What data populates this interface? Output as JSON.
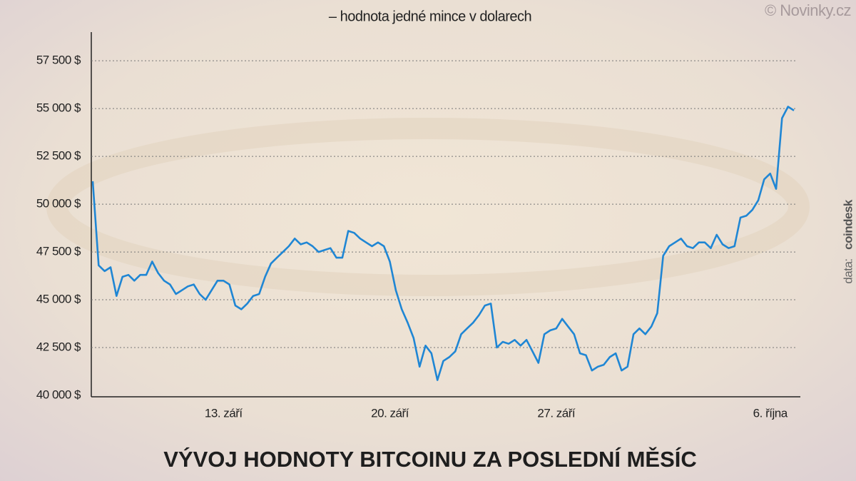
{
  "chart_data": {
    "type": "line",
    "title": "VÝVOJ HODNOTY BITCOINU ZA POSLEDNÍ MĚSÍC",
    "subtitle": "– hodnota jedné mince v dolarech",
    "watermark": "© Novinky.cz",
    "source_label": "data:",
    "source": "coindesk",
    "categories": [
      null,
      null,
      null,
      null,
      null,
      null,
      null,
      null,
      null,
      null,
      null,
      null,
      null,
      null,
      null,
      null,
      null,
      null,
      null,
      null,
      null,
      null,
      "13. září",
      null,
      null,
      null,
      null,
      null,
      null,
      null,
      null,
      null,
      null,
      null,
      null,
      null,
      null,
      null,
      null,
      null,
      null,
      null,
      null,
      null,
      null,
      null,
      null,
      null,
      null,
      null,
      "20. září",
      null,
      null,
      null,
      null,
      null,
      null,
      null,
      null,
      null,
      null,
      null,
      null,
      null,
      null,
      null,
      null,
      null,
      null,
      null,
      null,
      null,
      null,
      null,
      null,
      null,
      null,
      null,
      "27. září",
      null,
      null,
      null,
      null,
      null,
      null,
      null,
      null,
      null,
      null,
      null,
      null,
      null,
      null,
      null,
      null,
      null,
      null,
      null,
      null,
      null,
      null,
      null,
      null,
      null,
      null,
      null,
      null,
      null,
      null,
      null,
      null,
      null,
      null,
      null,
      "6. října",
      null,
      null,
      null,
      null
    ],
    "series": [
      {
        "color": "#1f86d4",
        "values": [
          51200,
          46800,
          46500,
          46700,
          45200,
          46200,
          46300,
          46000,
          46300,
          46300,
          47000,
          46400,
          46000,
          45800,
          45300,
          45500,
          45700,
          45800,
          45300,
          45000,
          45500,
          46000,
          46000,
          45800,
          44700,
          44500,
          44800,
          45200,
          45300,
          46200,
          46900,
          47200,
          47500,
          47800,
          48200,
          47900,
          48000,
          47800,
          47500,
          47600,
          47700,
          47200,
          47200,
          48600,
          48500,
          48200,
          48000,
          47800,
          48000,
          47800,
          47000,
          45500,
          44500,
          43800,
          43000,
          41500,
          42600,
          42200,
          40800,
          41800,
          42000,
          42300,
          43200,
          43500,
          43800,
          44200,
          44700,
          44800,
          42500,
          42800,
          42700,
          42900,
          42600,
          42900,
          42300,
          41700,
          43200,
          43400,
          43500,
          44000,
          43600,
          43200,
          42200,
          42100,
          41300,
          41500,
          41600,
          42000,
          42200,
          41300,
          41500,
          43200,
          43500,
          43200,
          43600,
          44300,
          47300,
          47800,
          48000,
          48200,
          47800,
          47700,
          48000,
          48000,
          47700,
          48400,
          47900,
          47700,
          47800,
          49300,
          49400,
          49700,
          50200,
          51300,
          51600,
          50800,
          54500,
          55100,
          54900
        ]
      }
    ],
    "ylim": [
      40000,
      59000
    ],
    "yticks": [
      {
        "value": 40000,
        "label": "40 000 $"
      },
      {
        "value": 42500,
        "label": "42 500 $"
      },
      {
        "value": 45000,
        "label": "45 000 $"
      },
      {
        "value": 47500,
        "label": "47 500 $"
      },
      {
        "value": 50000,
        "label": "50 000 $"
      },
      {
        "value": 52500,
        "label": "52 500 $"
      },
      {
        "value": 55000,
        "label": "55 000 $"
      },
      {
        "value": 57500,
        "label": "57 500 $"
      }
    ],
    "grid": true
  }
}
